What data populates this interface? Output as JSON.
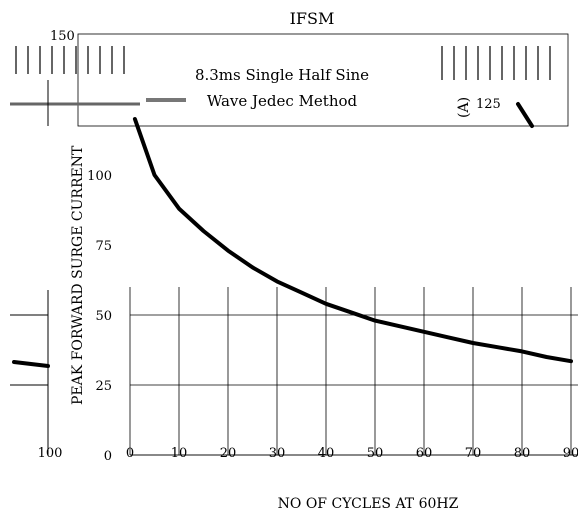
{
  "chart_data": {
    "type": "line",
    "title": "IFSM",
    "xlabel": "NO OF CYCLES AT 60HZ",
    "ylabel": "PEAK FORWARD SURGE CURRENT",
    "ylabel_unit": "(A)",
    "annotation_lines": [
      "8.3ms Single Half Sine",
      "Wave Jedec Method"
    ],
    "xlim": [
      0,
      90
    ],
    "ylim": [
      0,
      150
    ],
    "x_ticks": [
      0,
      10,
      20,
      30,
      40,
      50,
      60,
      70,
      80,
      90
    ],
    "y_ticks": [
      0,
      25,
      50,
      75,
      100,
      125,
      150
    ],
    "grid": true,
    "series": [
      {
        "x": [
          1,
          5,
          10,
          15,
          20,
          25,
          30,
          35,
          40,
          45,
          50,
          55,
          60,
          65,
          70,
          75,
          80,
          85,
          90
        ],
        "y": [
          120,
          100,
          88,
          80,
          73,
          67,
          62,
          58,
          54,
          51,
          48,
          46,
          44,
          42,
          40,
          38.5,
          37,
          35,
          33.5
        ]
      }
    ],
    "fragment_labels": [
      "100"
    ]
  }
}
